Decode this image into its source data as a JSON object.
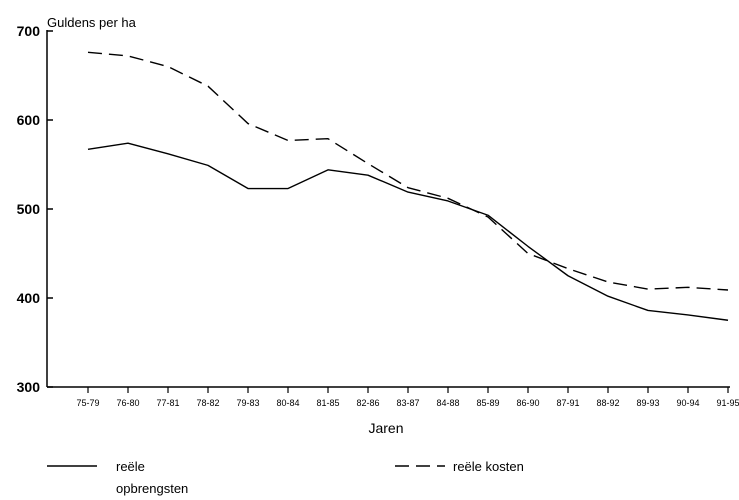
{
  "chart_data": {
    "type": "line",
    "title": "",
    "ylabel": "Guldens per ha",
    "xlabel": "Jaren",
    "ylim": [
      300,
      700
    ],
    "yticks": [
      300,
      400,
      500,
      600,
      700
    ],
    "categories": [
      "75-79",
      "76-80",
      "77-81",
      "78-82",
      "79-83",
      "80-84",
      "81-85",
      "82-86",
      "83-87",
      "84-88",
      "85-89",
      "86-90",
      "87-91",
      "88-92",
      "89-93",
      "90-94",
      "91-95"
    ],
    "series": [
      {
        "name": "reële opbrengsten",
        "legend_lines": [
          "reële",
          "opbrengsten"
        ],
        "style": "solid",
        "values": [
          567,
          574,
          562,
          549,
          523,
          523,
          544,
          538,
          519,
          509,
          493,
          458,
          425,
          402,
          386,
          381,
          375
        ]
      },
      {
        "name": "reële kosten",
        "legend_lines": [
          "reële kosten"
        ],
        "style": "dashed",
        "values": [
          676,
          672,
          660,
          638,
          596,
          577,
          579,
          551,
          524,
          512,
          491,
          450,
          433,
          418,
          410,
          412,
          409
        ]
      }
    ],
    "grid": false,
    "legend_position": "bottom"
  }
}
